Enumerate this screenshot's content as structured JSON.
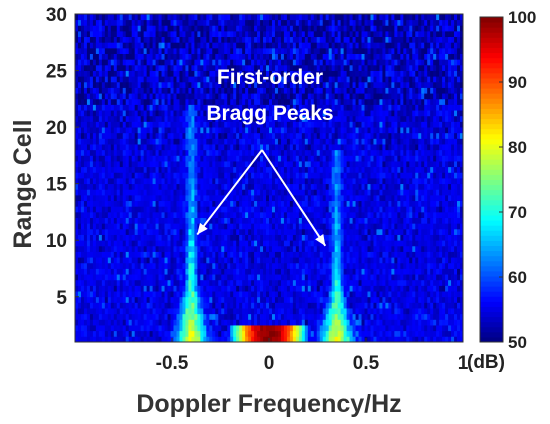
{
  "chart_data": {
    "type": "heatmap",
    "title": "",
    "xlabel": "Doppler Frequency/Hz",
    "ylabel": "Range Cell",
    "xlim": [
      -1,
      1
    ],
    "ylim": [
      1,
      30
    ],
    "x_ticks": [
      "-0.5",
      "0",
      "0.5",
      "1"
    ],
    "x_tick_values": [
      -0.5,
      0,
      0.5,
      1
    ],
    "y_ticks": [
      "5",
      "10",
      "15",
      "20",
      "25",
      "30"
    ],
    "y_tick_values": [
      5,
      10,
      15,
      20,
      25,
      30
    ],
    "colormap": "jet",
    "colorbar": {
      "unit": "(dB)",
      "range": [
        50,
        100
      ],
      "ticks": [
        "50",
        "60",
        "70",
        "80",
        "90",
        "100"
      ],
      "tick_values": [
        50,
        60,
        70,
        80,
        90,
        100
      ]
    },
    "background_level_db": 53,
    "features": [
      {
        "name": "negative Bragg peak",
        "doppler_hz": -0.4,
        "peak_db": 80,
        "visible_up_to_range_cell": 20
      },
      {
        "name": "positive Bragg peak",
        "doppler_hz": 0.35,
        "peak_db": 80,
        "visible_up_to_range_cell": 16
      },
      {
        "name": "zero-Doppler clutter",
        "doppler_hz": 0.0,
        "peak_db": 100,
        "range_cells": [
          1,
          2
        ]
      }
    ],
    "annotation": {
      "lines": [
        "First-order",
        "Bragg Peaks"
      ],
      "arrow_targets": [
        {
          "doppler_hz": -0.37,
          "range_cell": 10.5
        },
        {
          "doppler_hz": 0.29,
          "range_cell": 9.5
        }
      ]
    }
  }
}
